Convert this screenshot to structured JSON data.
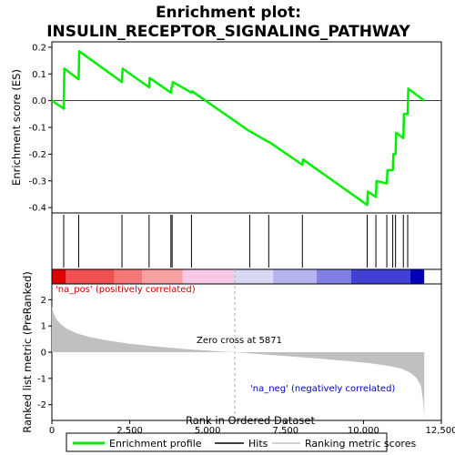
{
  "title_line1": "Enrichment plot:",
  "title_line2": "INSULIN_RECEPTOR_SIGNALING_PATHWAY",
  "colors": {
    "profile": "#00ee00",
    "hit": "#000000",
    "metric_fill": "#c0c0c0",
    "pos_label": "#cc0000",
    "neg_label": "#0000cc",
    "zero_cross_line": "#aaaaaa"
  },
  "chart_data": {
    "type": "line",
    "es_panel": {
      "ylabel": "Enrichment score (ES)",
      "ylim": [
        -0.42,
        0.22
      ],
      "yticks": [
        0.2,
        0.1,
        0.0,
        -0.1,
        -0.2,
        -0.3,
        -0.4
      ],
      "ytick_labels": [
        "0.2",
        "0.1",
        "0.0",
        "-0.1",
        "-0.2",
        "-0.3",
        "-0.4"
      ],
      "profile": {
        "x": [
          0,
          380,
          400,
          860,
          880,
          2250,
          2270,
          3120,
          3140,
          3820,
          3840,
          3860,
          3880,
          4480,
          4500,
          6350,
          6370,
          6960,
          6980,
          8040,
          8060,
          10120,
          10140,
          10400,
          10420,
          10750,
          10770,
          10940,
          10960,
          11030,
          11050,
          11280,
          11300,
          11420,
          11440,
          11950
        ],
        "y": [
          0.0,
          -0.03,
          0.12,
          0.08,
          0.185,
          0.07,
          0.12,
          0.05,
          0.085,
          0.03,
          0.05,
          0.05,
          0.07,
          0.03,
          0.035,
          -0.115,
          -0.115,
          -0.155,
          -0.155,
          -0.24,
          -0.22,
          -0.39,
          -0.34,
          -0.36,
          -0.3,
          -0.31,
          -0.26,
          -0.26,
          -0.2,
          -0.2,
          -0.12,
          -0.14,
          -0.05,
          -0.05,
          0.045,
          0.0
        ]
      }
    },
    "hits": [
      380,
      860,
      2250,
      3120,
      3820,
      3860,
      4480,
      6350,
      6960,
      8040,
      10120,
      10400,
      10750,
      10940,
      11030,
      11280,
      11420
    ],
    "heat_bands": [
      {
        "from": 0,
        "to": 450,
        "color": "#dd0000"
      },
      {
        "from": 450,
        "to": 2000,
        "color": "#f05050"
      },
      {
        "from": 2000,
        "to": 2900,
        "color": "#f47878"
      },
      {
        "from": 2900,
        "to": 4200,
        "color": "#f8a0a0"
      },
      {
        "from": 4200,
        "to": 5850,
        "color": "#f8c8e8"
      },
      {
        "from": 5850,
        "to": 7100,
        "color": "#d8d8f4"
      },
      {
        "from": 7100,
        "to": 8500,
        "color": "#b4b4ee"
      },
      {
        "from": 8500,
        "to": 9600,
        "color": "#8080e4"
      },
      {
        "from": 9600,
        "to": 11500,
        "color": "#4040d4"
      },
      {
        "from": 11500,
        "to": 11950,
        "color": "#0000bb"
      }
    ],
    "metric_panel": {
      "ylabel": "Ranked list metric (PreRanked)",
      "ylim": [
        -2.6,
        2.6
      ],
      "yticks": [
        2,
        1,
        0,
        -1,
        -2
      ],
      "ytick_labels": [
        "2",
        "1",
        "0",
        "-1",
        "-2"
      ],
      "curve": {
        "x": [
          0,
          50,
          150,
          300,
          500,
          800,
          1200,
          1800,
          2500,
          3500,
          4500,
          5200,
          5871,
          6500,
          7500,
          8500,
          9500,
          10200,
          10800,
          11200,
          11500,
          11700,
          11850,
          11920,
          11950
        ],
        "y": [
          1.75,
          1.5,
          1.25,
          1.05,
          0.88,
          0.72,
          0.58,
          0.44,
          0.32,
          0.2,
          0.1,
          0.04,
          0.0,
          -0.06,
          -0.15,
          -0.24,
          -0.34,
          -0.42,
          -0.52,
          -0.62,
          -0.78,
          -0.98,
          -1.3,
          -1.9,
          -2.55
        ]
      }
    },
    "xlabel": "Rank in Ordered Dataset",
    "xlim": [
      0,
      12500
    ],
    "xticks": [
      0,
      2500,
      5000,
      7500,
      10000,
      12500
    ],
    "xtick_labels": [
      "0",
      "2,500",
      "5,000",
      "7,500",
      "10,000",
      "12,500"
    ],
    "zero_cross": 5871,
    "annotations": {
      "pos": "'na_pos' (positively correlated)",
      "neg": "'na_neg' (negatively correlated)",
      "zero": "Zero cross at 5871"
    }
  },
  "legend": {
    "items": [
      {
        "label": "Enrichment profile",
        "color": "#00ee00"
      },
      {
        "label": "Hits",
        "color": "#000000"
      },
      {
        "label": "Ranking metric scores",
        "color": "#c0c0c0"
      }
    ]
  }
}
